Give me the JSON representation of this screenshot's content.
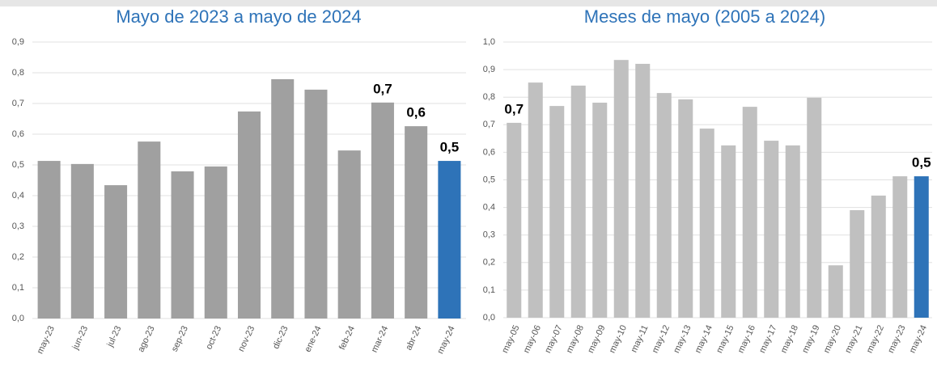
{
  "chart_data": [
    {
      "type": "bar",
      "title": "Mayo de 2023 a mayo de 2024",
      "categories": [
        "may-23",
        "jun-23",
        "jul-23",
        "ago-23",
        "sep-23",
        "oct-23",
        "nov-23",
        "dic-23",
        "ene-24",
        "feb-24",
        "mar-24",
        "abr-24",
        "may-24"
      ],
      "values": [
        0.513,
        0.503,
        0.434,
        0.576,
        0.479,
        0.495,
        0.674,
        0.779,
        0.745,
        0.547,
        0.703,
        0.626,
        0.513
      ],
      "value_labels": [
        null,
        null,
        null,
        null,
        null,
        null,
        null,
        null,
        null,
        null,
        "0,7",
        "0,6",
        "0,5"
      ],
      "colors": [
        "#a0a0a0",
        "#a0a0a0",
        "#a0a0a0",
        "#a0a0a0",
        "#a0a0a0",
        "#a0a0a0",
        "#a0a0a0",
        "#a0a0a0",
        "#a0a0a0",
        "#a0a0a0",
        "#a0a0a0",
        "#a0a0a0",
        "#2e73b8"
      ],
      "ylim": [
        0,
        0.9
      ],
      "yticks": [
        {
          "value": 0,
          "label": "0,0"
        },
        {
          "value": 0.1,
          "label": "0,1"
        },
        {
          "value": 0.2,
          "label": "0,2"
        },
        {
          "value": 0.3,
          "label": "0,3"
        },
        {
          "value": 0.4,
          "label": "0,4"
        },
        {
          "value": 0.5,
          "label": "0,5"
        },
        {
          "value": 0.6,
          "label": "0,6"
        },
        {
          "value": 0.7,
          "label": "0,7"
        },
        {
          "value": 0.8,
          "label": "0,8"
        },
        {
          "value": 0.9,
          "label": "0,9"
        }
      ],
      "grid": true
    },
    {
      "type": "bar",
      "title": "Meses de mayo (2005 a 2024)",
      "categories": [
        "may-05",
        "may-06",
        "may-07",
        "may-08",
        "may-09",
        "may-10",
        "may-11",
        "may-12",
        "may-13",
        "may-14",
        "may-15",
        "may-16",
        "may-17",
        "may-18",
        "may-19",
        "may-20",
        "may-21",
        "may-22",
        "may-23",
        "may-24"
      ],
      "values": [
        0.707,
        0.853,
        0.768,
        0.842,
        0.78,
        0.935,
        0.921,
        0.815,
        0.792,
        0.686,
        0.625,
        0.765,
        0.642,
        0.625,
        0.798,
        0.19,
        0.39,
        0.443,
        0.513,
        0.513
      ],
      "value_labels": [
        "0,7",
        null,
        null,
        null,
        null,
        null,
        null,
        null,
        null,
        null,
        null,
        null,
        null,
        null,
        null,
        null,
        null,
        null,
        null,
        "0,5"
      ],
      "colors": [
        "#c0c0c0",
        "#c0c0c0",
        "#c0c0c0",
        "#c0c0c0",
        "#c0c0c0",
        "#c0c0c0",
        "#c0c0c0",
        "#c0c0c0",
        "#c0c0c0",
        "#c0c0c0",
        "#c0c0c0",
        "#c0c0c0",
        "#c0c0c0",
        "#c0c0c0",
        "#c0c0c0",
        "#c0c0c0",
        "#c0c0c0",
        "#c0c0c0",
        "#c0c0c0",
        "#2e73b8"
      ],
      "ylim": [
        0,
        1.0
      ],
      "yticks": [
        {
          "value": 0,
          "label": "0,0"
        },
        {
          "value": 0.1,
          "label": "0,1"
        },
        {
          "value": 0.2,
          "label": "0,2"
        },
        {
          "value": 0.3,
          "label": "0,3"
        },
        {
          "value": 0.4,
          "label": "0,4"
        },
        {
          "value": 0.5,
          "label": "0,5"
        },
        {
          "value": 0.6,
          "label": "0,6"
        },
        {
          "value": 0.7,
          "label": "0,7"
        },
        {
          "value": 0.8,
          "label": "0,8"
        },
        {
          "value": 0.9,
          "label": "0,9"
        },
        {
          "value": 1.0,
          "label": "1,0"
        }
      ],
      "grid": true
    }
  ]
}
